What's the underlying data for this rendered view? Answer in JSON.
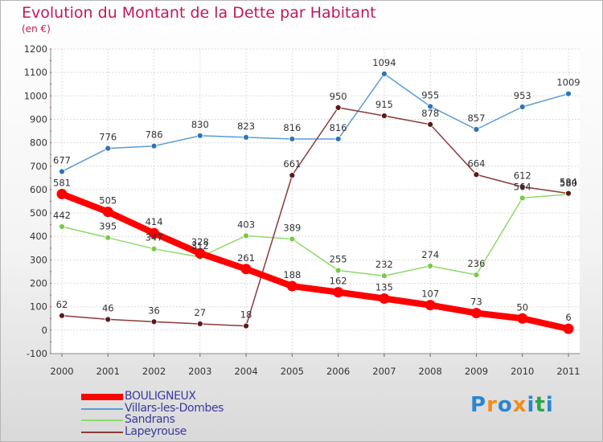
{
  "title": "Evolution du Montant de la Dette par Habitant",
  "subtitle": "(en €)",
  "logo_letters": [
    "P",
    "r",
    "o",
    "x",
    "i",
    "t",
    "i"
  ],
  "logo_colors": [
    "#2a86d1",
    "#f28c1c",
    "#2a86d1",
    "#f28c1c",
    "#2a86d1",
    "#2ba84a",
    "#2a86d1"
  ],
  "chart_data": {
    "type": "line",
    "x": [
      "2000",
      "2001",
      "2002",
      "2003",
      "2004",
      "2005",
      "2006",
      "2007",
      "2008",
      "2009",
      "2010",
      "2011"
    ],
    "ylim": [
      -100,
      1200
    ],
    "yticks": [
      "-100",
      "0",
      "100",
      "200",
      "300",
      "400",
      "500",
      "600",
      "700",
      "800",
      "900",
      "1000",
      "1100",
      "1200"
    ],
    "grid": true,
    "legend_position": "bottom-left",
    "series": [
      {
        "name": "Villars-les-Dombes",
        "color": "#5b9bd5",
        "marker_color": "#2e75b6",
        "values": [
          677,
          776,
          786,
          830,
          823,
          816,
          816,
          1094,
          955,
          857,
          953,
          1009
        ],
        "labels": [
          "677",
          "776",
          "786",
          "830",
          "823",
          "816",
          "816",
          "1094",
          "955",
          "857",
          "953",
          "1009"
        ]
      },
      {
        "name": "Sandrans",
        "color": "#8fd96a",
        "marker_color": "#79c94a",
        "values": [
          442,
          395,
          347,
          312,
          403,
          389,
          255,
          232,
          274,
          236,
          564,
          580
        ],
        "labels": [
          "442",
          "395",
          "347",
          "312",
          "403",
          "389",
          "255",
          "232",
          "274",
          "236",
          "564",
          "580"
        ]
      },
      {
        "name": "Lapeyrouse",
        "color": "#8b3a3a",
        "marker_color": "#5a1a1a",
        "values": [
          62,
          46,
          36,
          27,
          18,
          661,
          950,
          915,
          878,
          664,
          612,
          584
        ],
        "labels": [
          "62",
          "46",
          "36",
          "27",
          "18",
          "661",
          "950",
          "915",
          "878",
          "664",
          "612",
          "584"
        ]
      },
      {
        "name": "BOULIGNEUX",
        "color": "#ff0000",
        "marker_color": "#ff0000",
        "values": [
          581,
          505,
          414,
          328,
          261,
          188,
          162,
          135,
          107,
          73,
          50,
          6
        ],
        "labels": [
          "581",
          "505",
          "414",
          "328",
          "261",
          "188",
          "162",
          "135",
          "107",
          "73",
          "50",
          "6"
        ]
      }
    ],
    "legend_order": [
      "BOULIGNEUX",
      "Villars-les-Dombes",
      "Sandrans",
      "Lapeyrouse"
    ]
  }
}
